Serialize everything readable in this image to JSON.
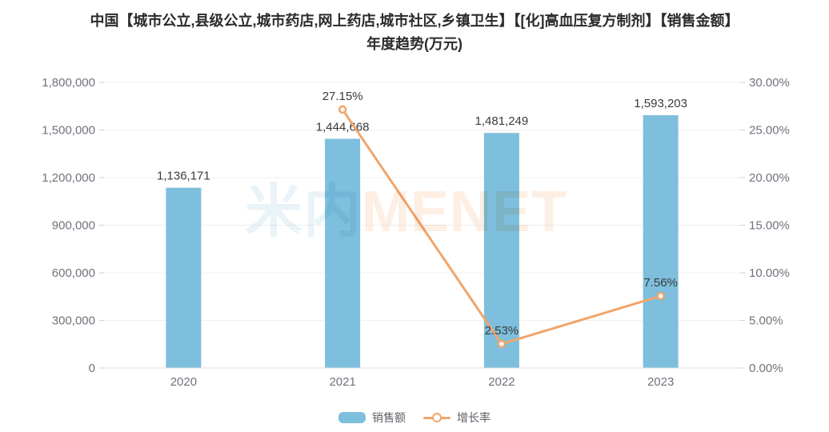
{
  "title": {
    "line1": "中国【城市公立,县级公立,城市药店,网上药店,城市社区,乡镇卫生】【[化]高血压复方制剂】【销售金额】",
    "line2": "年度趋势(万元)"
  },
  "watermark": {
    "part_cn": "米内",
    "part_en": "MENET"
  },
  "colors": {
    "bar": "#7dbfdd",
    "line": "#f0a56b",
    "title_text": "#2b2b2b",
    "axis_label": "#6e737b",
    "data_label": "#3a3a3a",
    "gridline": "#f0f0f0",
    "axis_line": "#e0e0e0",
    "tick_mark": "#cfcfcf"
  },
  "chart_data": {
    "type": "bar",
    "subtype": "bar-line-combo",
    "title": "中国【城市公立,县级公立,城市药店,网上药店,城市社区,乡镇卫生】【[化]高血压复方制剂】【销售金额】年度趋势(万元)",
    "categories": [
      "2020",
      "2021",
      "2022",
      "2023"
    ],
    "series": [
      {
        "name": "销售额",
        "type": "bar",
        "axis": "left",
        "values": [
          1136171,
          1444668,
          1481249,
          1593203
        ],
        "labels": [
          "1,136,171",
          "1,444,668",
          "1,481,249",
          "1,593,203"
        ]
      },
      {
        "name": "增长率",
        "type": "line",
        "axis": "right",
        "values": [
          null,
          27.15,
          2.53,
          7.56
        ],
        "labels": [
          null,
          "27.15%",
          "2.53%",
          "7.56%"
        ]
      }
    ],
    "left_axis": {
      "min": 0,
      "max": 1800000,
      "step": 300000,
      "labels": [
        "0",
        "300,000",
        "600,000",
        "900,000",
        "1,200,000",
        "1,500,000",
        "1,800,000"
      ]
    },
    "right_axis": {
      "min": 0,
      "max": 30,
      "step": 5,
      "labels": [
        "0.00%",
        "5.00%",
        "10.00%",
        "15.00%",
        "20.00%",
        "25.00%",
        "30.00%"
      ]
    },
    "grid": true,
    "legend_position": "bottom"
  },
  "legend": {
    "items": [
      {
        "label": "销售额",
        "type": "bar"
      },
      {
        "label": "增长率",
        "type": "line"
      }
    ]
  }
}
